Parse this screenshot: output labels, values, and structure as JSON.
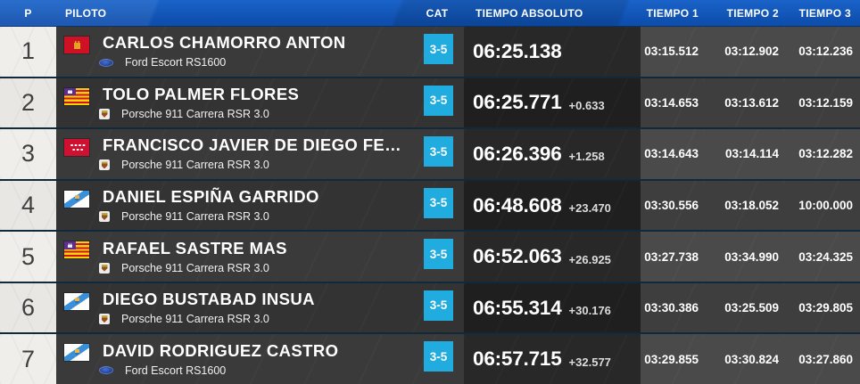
{
  "table": {
    "headers": {
      "pos": "P",
      "piloto": "PILOTO",
      "cat": "CAT",
      "abs": "TIEMPO ABSOLUTO",
      "t1": "TIEMPO 1",
      "t2": "TIEMPO 2",
      "t3": "TIEMPO 3"
    }
  },
  "colors": {
    "header_blue": "#0e4fae",
    "header_blue_light": "#1a63c9",
    "cat_badge": "#21acdf",
    "separator": "#12293b"
  },
  "rows": [
    {
      "pos": "1",
      "flag": "castilla-la-mancha",
      "driver": "CARLOS CHAMORRO ANTON",
      "car_brand": "ford",
      "car": "Ford Escort RS1600",
      "cat": "3-5",
      "abs": "06:25.138",
      "gap": "",
      "t1": "03:15.512",
      "t2": "03:12.902",
      "t3": "03:12.236"
    },
    {
      "pos": "2",
      "flag": "balearic-islands",
      "driver": "TOLO PALMER FLORES",
      "car_brand": "porsche",
      "car": "Porsche 911 Carrera RSR 3.0",
      "cat": "3-5",
      "abs": "06:25.771",
      "gap": "+0.633",
      "t1": "03:14.653",
      "t2": "03:13.612",
      "t3": "03:12.159"
    },
    {
      "pos": "3",
      "flag": "madrid",
      "driver": "FRANCISCO JAVIER DE DIEGO FE…",
      "car_brand": "porsche",
      "car": "Porsche 911 Carrera RSR 3.0",
      "cat": "3-5",
      "abs": "06:26.396",
      "gap": "+1.258",
      "t1": "03:14.643",
      "t2": "03:14.114",
      "t3": "03:12.282"
    },
    {
      "pos": "4",
      "flag": "galicia",
      "driver": "DANIEL ESPIÑA GARRIDO",
      "car_brand": "porsche",
      "car": "Porsche 911 Carrera RSR 3.0",
      "cat": "3-5",
      "abs": "06:48.608",
      "gap": "+23.470",
      "t1": "03:30.556",
      "t2": "03:18.052",
      "t3": "10:00.000"
    },
    {
      "pos": "5",
      "flag": "balearic-islands",
      "driver": "RAFAEL SASTRE MAS",
      "car_brand": "porsche",
      "car": "Porsche 911 Carrera RSR 3.0",
      "cat": "3-5",
      "abs": "06:52.063",
      "gap": "+26.925",
      "t1": "03:27.738",
      "t2": "03:34.990",
      "t3": "03:24.325"
    },
    {
      "pos": "6",
      "flag": "galicia",
      "driver": "DIEGO BUSTABAD INSUA",
      "car_brand": "porsche",
      "car": "Porsche 911 Carrera RSR 3.0",
      "cat": "3-5",
      "abs": "06:55.314",
      "gap": "+30.176",
      "t1": "03:30.386",
      "t2": "03:25.509",
      "t3": "03:29.805"
    },
    {
      "pos": "7",
      "flag": "galicia",
      "driver": "DAVID RODRIGUEZ CASTRO",
      "car_brand": "ford",
      "car": "Ford Escort RS1600",
      "cat": "3-5",
      "abs": "06:57.715",
      "gap": "+32.577",
      "t1": "03:29.855",
      "t2": "03:30.824",
      "t3": "03:27.860"
    }
  ]
}
